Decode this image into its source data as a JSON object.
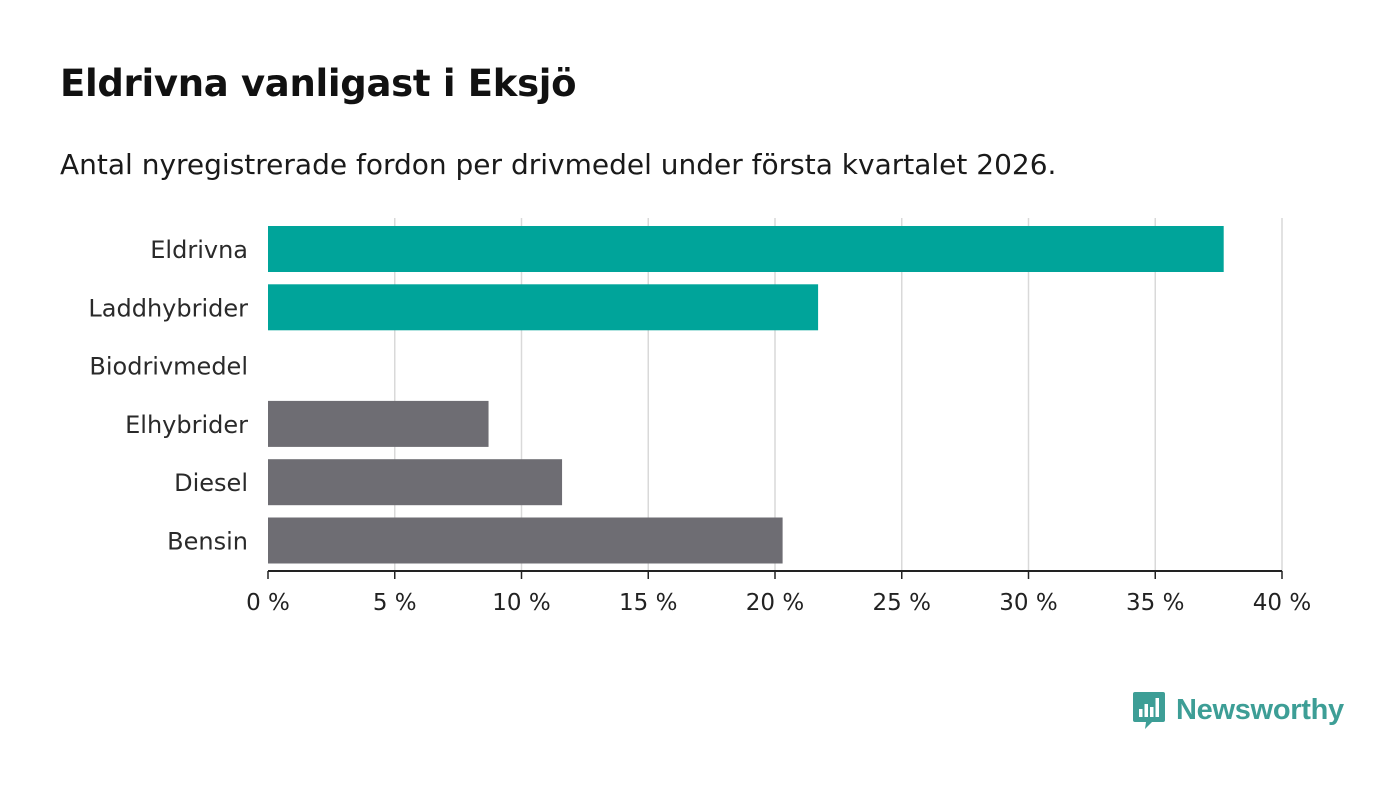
{
  "header": {
    "title": "Eldrivna vanligast i Eksjö",
    "subtitle": "Antal nyregistrerade fordon per drivmedel under första kvartalet 2026."
  },
  "colors": {
    "highlight": "#00a49a",
    "other": "#6e6d73",
    "grid": "#d9d9d9",
    "axis": "#222222",
    "logo": "#3d9e96"
  },
  "chart_data": {
    "type": "bar",
    "orientation": "horizontal",
    "title": "Eldrivna vanligast i Eksjö",
    "subtitle": "Antal nyregistrerade fordon per drivmedel under första kvartalet 2026.",
    "categories": [
      "Eldrivna",
      "Laddhybrider",
      "Biodrivmedel",
      "Elhybrider",
      "Diesel",
      "Bensin"
    ],
    "values": [
      37.7,
      21.7,
      0,
      8.7,
      11.6,
      20.3
    ],
    "highlighted": [
      true,
      true,
      false,
      false,
      false,
      false
    ],
    "xlim": [
      0,
      40
    ],
    "xticks": [
      0,
      5,
      10,
      15,
      20,
      25,
      30,
      35,
      40
    ],
    "xtick_labels": [
      "0 %",
      "5 %",
      "10 %",
      "15 %",
      "20 %",
      "25 %",
      "30 %",
      "35 %",
      "40 %"
    ],
    "grid": true,
    "legend": "none"
  },
  "logo": {
    "name": "Newsworthy"
  }
}
